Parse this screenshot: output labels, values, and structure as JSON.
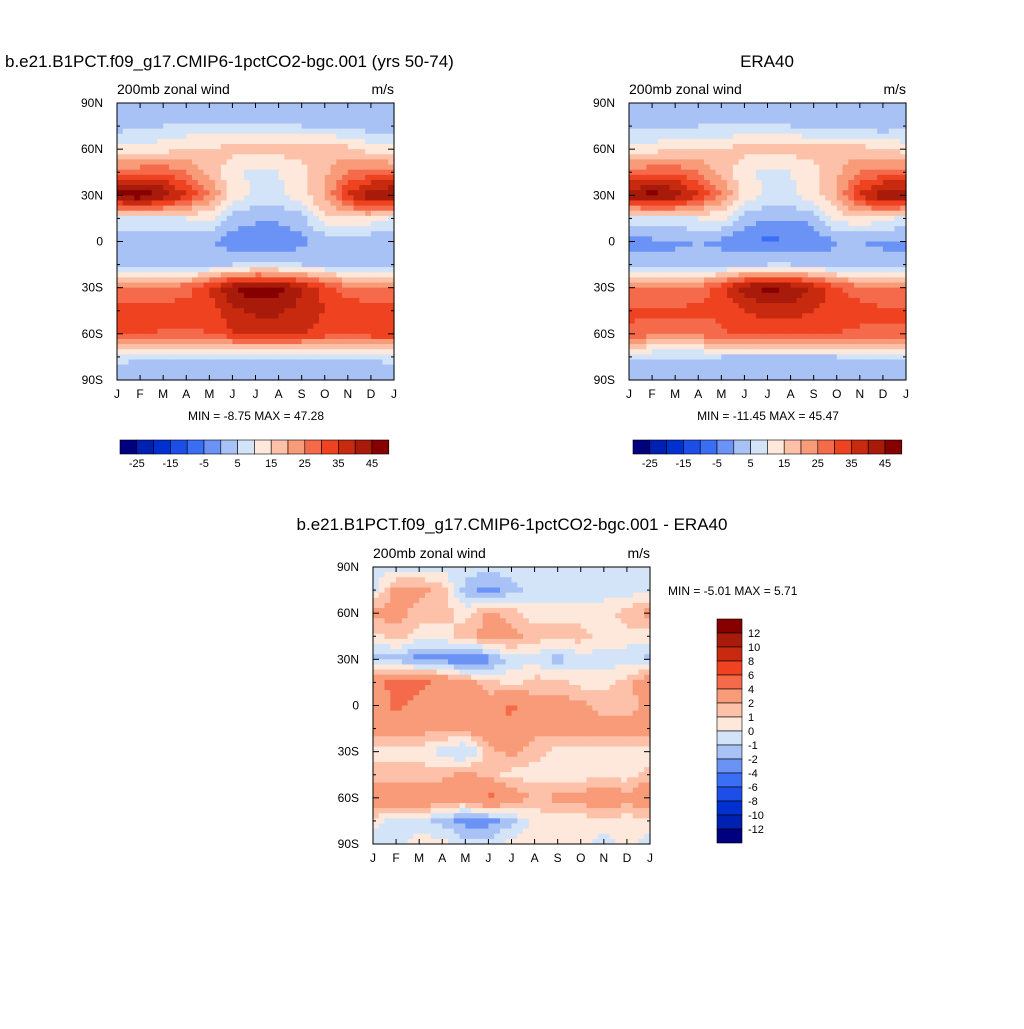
{
  "panels": [
    {
      "title": "b.e21.B1PCT.f09_g17.CMIP6-1pctCO2-bgc.001 (yrs 50-74)",
      "subtitle_left": "200mb zonal wind",
      "subtitle_right": "m/s",
      "stats": "MIN =  -8.75 MAX =  47.28"
    },
    {
      "title": "ERA40",
      "subtitle_left": "200mb zonal wind",
      "subtitle_right": "m/s",
      "stats": "MIN = -11.45 MAX =  45.47"
    },
    {
      "title": "b.e21.B1PCT.f09_g17.CMIP6-1pctCO2-bgc.001 - ERA40",
      "subtitle_left": "200mb zonal wind",
      "subtitle_right": "m/s",
      "stats": "MIN =  -5.01 MAX =   5.71"
    }
  ],
  "chart_data": [
    {
      "type": "heatmap",
      "title": "b.e21.B1PCT.f09_g17.CMIP6-1pctCO2-bgc.001 (yrs 50-74)",
      "x_ticks": [
        "J",
        "F",
        "M",
        "A",
        "M",
        "J",
        "J",
        "A",
        "S",
        "O",
        "N",
        "D",
        "J"
      ],
      "y_ticks": [
        "90N",
        "60N",
        "30N",
        "0",
        "30S",
        "60S",
        "90S"
      ],
      "x_months": [
        0,
        1,
        2,
        3,
        4,
        5,
        6,
        7,
        8,
        9,
        10,
        11,
        12
      ],
      "y_lat": [
        -90,
        -75,
        -60,
        -45,
        -30,
        -15,
        0,
        15,
        30,
        45,
        60,
        75,
        90
      ],
      "values": [
        [
          -5,
          -5,
          -5,
          -5,
          -5,
          -5,
          -5,
          -5,
          -5,
          -5,
          -5,
          -5,
          -5
        ],
        [
          2,
          1,
          0,
          0,
          0,
          0,
          0,
          0,
          0,
          0,
          0,
          1,
          2
        ],
        [
          28,
          26,
          24,
          24,
          25,
          30,
          32,
          32,
          30,
          28,
          28,
          28,
          28
        ],
        [
          28,
          28,
          27,
          27,
          27,
          34,
          36,
          36,
          33,
          30,
          28,
          28,
          28
        ],
        [
          20,
          20,
          22,
          23,
          30,
          40,
          44,
          42,
          36,
          28,
          22,
          20,
          20
        ],
        [
          -3,
          -3,
          -3,
          -3,
          -2,
          0,
          1,
          1,
          0,
          -2,
          -3,
          -3,
          -3
        ],
        [
          -4,
          -4,
          -4,
          -3,
          -4,
          -8,
          -9,
          -9,
          -7,
          -3,
          -3,
          -4,
          -4
        ],
        [
          4,
          4,
          4,
          5,
          6,
          -2,
          -4,
          -4,
          -2,
          8,
          10,
          8,
          4
        ],
        [
          42,
          45,
          40,
          30,
          20,
          8,
          4,
          4,
          8,
          16,
          30,
          40,
          42
        ],
        [
          22,
          24,
          24,
          20,
          14,
          6,
          4,
          5,
          8,
          14,
          20,
          22,
          22
        ],
        [
          6,
          6,
          8,
          10,
          10,
          12,
          12,
          12,
          12,
          14,
          12,
          8,
          6
        ],
        [
          -2,
          -1,
          0,
          1,
          1,
          1,
          1,
          1,
          0,
          -1,
          -2,
          -3,
          -2
        ],
        [
          -5,
          -5,
          -5,
          -5,
          -5,
          -5,
          -5,
          -5,
          -5,
          -5,
          -5,
          -5,
          -5
        ]
      ],
      "contour_levels": [
        -30,
        -25,
        -20,
        -15,
        -10,
        -5,
        0,
        5,
        10,
        15,
        20,
        25,
        30,
        35,
        40,
        45
      ],
      "colorbar_labels": [
        "-25",
        "-15",
        "-5",
        "5",
        "15",
        "25",
        "35",
        "45"
      ]
    },
    {
      "type": "heatmap",
      "title": "ERA40",
      "x_ticks": [
        "J",
        "F",
        "M",
        "A",
        "M",
        "J",
        "J",
        "A",
        "S",
        "O",
        "N",
        "D",
        "J"
      ],
      "y_ticks": [
        "90N",
        "60N",
        "30N",
        "0",
        "30S",
        "60S",
        "90S"
      ],
      "x_months": [
        0,
        1,
        2,
        3,
        4,
        5,
        6,
        7,
        8,
        9,
        10,
        11,
        12
      ],
      "y_lat": [
        -90,
        -75,
        -60,
        -45,
        -30,
        -15,
        0,
        15,
        30,
        45,
        60,
        75,
        90
      ],
      "values": [
        [
          -5,
          -5,
          -5,
          -5,
          -5,
          -5,
          -5,
          -5,
          -5,
          -5,
          -5,
          -5,
          -5
        ],
        [
          1,
          0,
          0,
          0,
          0,
          -1,
          -1,
          -1,
          -1,
          0,
          0,
          1,
          1
        ],
        [
          24,
          22,
          22,
          22,
          24,
          26,
          27,
          27,
          26,
          25,
          24,
          24,
          24
        ],
        [
          26,
          26,
          26,
          26,
          26,
          30,
          32,
          32,
          30,
          28,
          27,
          26,
          26
        ],
        [
          20,
          20,
          21,
          22,
          28,
          38,
          42,
          40,
          34,
          26,
          22,
          20,
          20
        ],
        [
          -3,
          -3,
          -3,
          -3,
          -3,
          -1,
          0,
          0,
          -1,
          -3,
          -3,
          -3,
          -3
        ],
        [
          -6,
          -6,
          -6,
          -5,
          -6,
          -10,
          -11,
          -10,
          -9,
          -5,
          -5,
          -6,
          -6
        ],
        [
          3,
          3,
          4,
          5,
          6,
          -2,
          -5,
          -5,
          -3,
          7,
          9,
          7,
          3
        ],
        [
          40,
          43,
          40,
          30,
          20,
          8,
          4,
          4,
          8,
          16,
          30,
          40,
          40
        ],
        [
          22,
          24,
          24,
          20,
          14,
          6,
          4,
          5,
          8,
          14,
          20,
          22,
          22
        ],
        [
          8,
          8,
          9,
          10,
          10,
          12,
          12,
          12,
          12,
          13,
          12,
          10,
          8
        ],
        [
          -2,
          -2,
          -1,
          0,
          0,
          0,
          0,
          0,
          -1,
          -2,
          -3,
          -3,
          -2
        ],
        [
          -5,
          -5,
          -5,
          -5,
          -5,
          -5,
          -5,
          -5,
          -5,
          -5,
          -5,
          -5,
          -5
        ]
      ],
      "contour_levels": [
        -30,
        -25,
        -20,
        -15,
        -10,
        -5,
        0,
        5,
        10,
        15,
        20,
        25,
        30,
        35,
        40,
        45
      ],
      "colorbar_labels": [
        "-25",
        "-15",
        "-5",
        "5",
        "15",
        "25",
        "35",
        "45"
      ]
    },
    {
      "type": "heatmap",
      "title": "b.e21.B1PCT.f09_g17.CMIP6-1pctCO2-bgc.001 - ERA40",
      "x_ticks": [
        "J",
        "F",
        "M",
        "A",
        "M",
        "J",
        "J",
        "A",
        "S",
        "O",
        "N",
        "D",
        "J"
      ],
      "y_ticks": [
        "90N",
        "60N",
        "30N",
        "0",
        "30S",
        "60S",
        "90S"
      ],
      "x_months": [
        0,
        1,
        2,
        3,
        4,
        5,
        6,
        7,
        8,
        9,
        10,
        11,
        12
      ],
      "y_lat": [
        -90,
        -75,
        -60,
        -45,
        -30,
        -15,
        0,
        15,
        30,
        45,
        60,
        75,
        90
      ],
      "values": [
        [
          -0.5,
          -0.5,
          0.5,
          0.5,
          -0.5,
          -0.5,
          0.5,
          0.5,
          0.5,
          0.5,
          -0.5,
          0.5,
          -0.5
        ],
        [
          0.5,
          -0.5,
          -0.5,
          -1.5,
          -2.5,
          -2.5,
          -1.5,
          0.5,
          0.5,
          0.5,
          0.5,
          0.5,
          0.5
        ],
        [
          3.5,
          3.5,
          3.5,
          3.5,
          2.5,
          4.5,
          3.5,
          1.5,
          2.5,
          2.5,
          3.5,
          2.5,
          3.5
        ],
        [
          1.5,
          1.5,
          1.5,
          1.5,
          2.5,
          1.5,
          0.5,
          0.5,
          0.5,
          0.5,
          0.5,
          0.5,
          1.5
        ],
        [
          0.5,
          0.5,
          0.5,
          -0.5,
          -1.5,
          1.5,
          2.5,
          1.5,
          0.5,
          0.5,
          0.5,
          0.5,
          0.5
        ],
        [
          2.5,
          2.5,
          2.5,
          2.5,
          2.5,
          3.5,
          3.5,
          2.5,
          2.5,
          2.5,
          2.5,
          2.5,
          2.5
        ],
        [
          2.5,
          4.5,
          3.5,
          2.5,
          2.5,
          2.5,
          4.5,
          2.5,
          2.5,
          2.5,
          1.5,
          1.5,
          2.5
        ],
        [
          3.5,
          4.5,
          4.5,
          3.5,
          2.5,
          1.5,
          0.5,
          1.5,
          1.5,
          0.5,
          0.5,
          1.5,
          3.5
        ],
        [
          -1.5,
          -1.5,
          -2.5,
          -2.5,
          -3.5,
          -2.5,
          -0.5,
          -0.5,
          -1.5,
          -0.5,
          -0.5,
          -0.5,
          -1.5
        ],
        [
          0.5,
          1.5,
          0.5,
          0.5,
          1.5,
          2.5,
          2.5,
          1.5,
          1.5,
          1.5,
          0.5,
          0.5,
          0.5
        ],
        [
          2.5,
          2.5,
          1.5,
          1.5,
          0.5,
          2.5,
          1.5,
          0.5,
          0.5,
          0.5,
          0.5,
          1.5,
          2.5
        ],
        [
          -0.5,
          2.5,
          2.5,
          1.5,
          -1.5,
          -2.5,
          -1.5,
          -0.5,
          -0.5,
          -0.5,
          -0.5,
          -0.5,
          -0.5
        ],
        [
          -0.5,
          -0.5,
          -0.5,
          -0.5,
          -0.5,
          -0.5,
          -0.5,
          -0.5,
          -0.5,
          -0.5,
          -0.5,
          -0.5,
          -0.5
        ]
      ],
      "contour_levels": [
        -12,
        -10,
        -8,
        -6,
        -4,
        -2,
        -1,
        0,
        1,
        2,
        4,
        6,
        8,
        10,
        12
      ],
      "colorbar_labels": [
        "12",
        "10",
        "8",
        "6",
        "4",
        "2",
        "1",
        "0",
        "-1",
        "-2",
        "-4",
        "-6",
        "-8",
        "-10",
        "-12"
      ]
    }
  ],
  "colors": {
    "full_palette": [
      "#00007f",
      "#0020b2",
      "#0030d0",
      "#1d4fe8",
      "#3a6ff5",
      "#6a93f5",
      "#a9c2f5",
      "#d3e4f8",
      "#fde8db",
      "#fcc1a8",
      "#f89b78",
      "#f56a4a",
      "#ee4220",
      "#c82a10",
      "#a81a0a",
      "#860000"
    ],
    "diff_palette": [
      "#00007f",
      "#0020b2",
      "#0030d0",
      "#1d4fe8",
      "#3a6ff5",
      "#6a93f5",
      "#a9c2f5",
      "#d3e4f8",
      "#fde8db",
      "#fcc1a8",
      "#f89b78",
      "#f56a4a",
      "#ee4220",
      "#c82a10",
      "#a81a0a",
      "#860000"
    ]
  }
}
